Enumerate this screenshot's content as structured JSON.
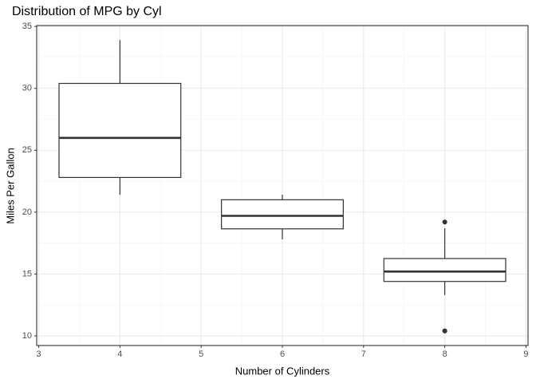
{
  "chart_data": {
    "type": "box",
    "title": "Distribution of MPG by Cyl",
    "x_label": "Number of Cylinders",
    "y_label": "Miles Per Gallon",
    "xlim": [
      2.975,
      9.025
    ],
    "xticks": [
      3,
      4,
      5,
      6,
      7,
      8,
      9
    ],
    "ylim": [
      9.225,
      35.075
    ],
    "yticks": [
      10,
      15,
      20,
      25,
      30,
      35
    ],
    "grid": true,
    "box_width": 1.5,
    "series": [
      {
        "x": 4,
        "min": 21.4,
        "q1": 22.8,
        "median": 26,
        "q3": 30.4,
        "max": 33.9,
        "outliers": []
      },
      {
        "x": 6,
        "min": 17.8,
        "q1": 18.65,
        "median": 19.7,
        "q3": 21,
        "max": 21.4,
        "outliers": []
      },
      {
        "x": 8,
        "min": 13.3,
        "q1": 14.4,
        "median": 15.2,
        "q3": 16.25,
        "max": 18.7,
        "outliers": [
          10.4,
          10.4,
          19.2
        ]
      }
    ]
  }
}
